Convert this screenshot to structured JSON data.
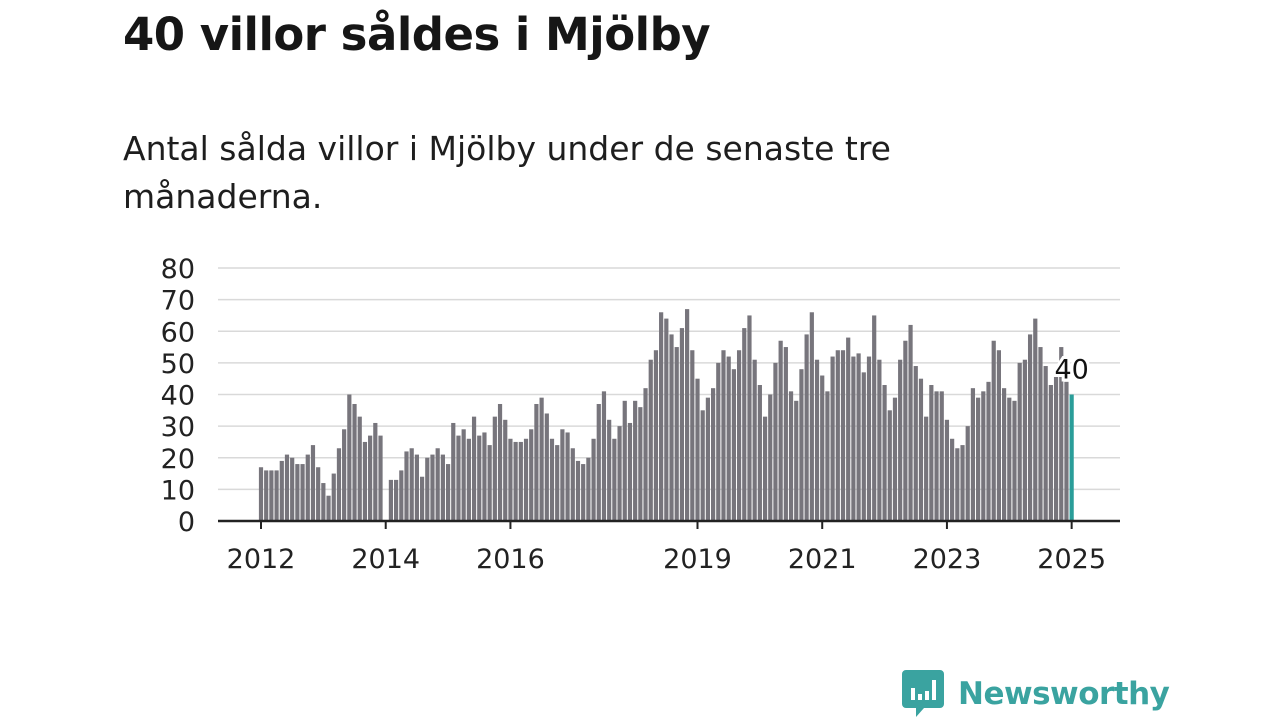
{
  "header": {
    "title": "40 villor såldes i Mjölby",
    "subtitle": "Antal sålda villor i Mjölby under de senaste tre månaderna."
  },
  "brand": {
    "name": "Newsworthy",
    "color": "#3aa3a0",
    "icon": "newsworthy-logo-icon"
  },
  "colors": {
    "bar": "#77757c",
    "highlight": "#2a9d99",
    "grid": "#d9d9d9",
    "axis": "#222222"
  },
  "chart_data": {
    "type": "bar",
    "title": "",
    "xlabel": "",
    "ylabel": "",
    "ylim": [
      0,
      80
    ],
    "yticks": [
      0,
      10,
      20,
      30,
      40,
      50,
      60,
      70,
      80
    ],
    "xticks": [
      "2012",
      "2014",
      "2016",
      "2019",
      "2021",
      "2023",
      "2025"
    ],
    "x_start": "2012-01",
    "x_end": "2025-01",
    "grid": true,
    "highlight_label": "40",
    "series": [
      {
        "values": [
          17,
          16,
          16,
          16,
          19,
          21,
          20,
          18,
          18,
          21,
          24,
          17,
          12,
          8,
          15,
          23,
          29,
          40,
          37,
          33,
          25,
          27,
          31,
          27,
          0,
          13,
          13,
          16,
          22,
          23,
          21,
          14,
          20,
          21,
          23,
          21,
          18,
          31,
          27,
          29,
          26,
          33,
          27,
          28,
          24,
          33,
          37,
          32,
          26,
          25,
          25,
          26,
          29,
          37,
          39,
          34,
          26,
          24,
          29,
          28,
          23,
          19,
          18,
          20,
          26,
          37,
          41,
          32,
          26,
          30,
          38,
          31,
          38,
          36,
          42,
          51,
          54,
          66,
          64,
          59,
          55,
          61,
          67,
          54,
          45,
          35,
          39,
          42,
          50,
          54,
          52,
          48,
          54,
          61,
          65,
          51,
          43,
          33,
          40,
          50,
          57,
          55,
          41,
          38,
          48,
          59,
          66,
          51,
          46,
          41,
          52,
          54,
          54,
          58,
          52,
          53,
          47,
          52,
          65,
          51,
          43,
          35,
          39,
          51,
          57,
          62,
          49,
          45,
          33,
          43,
          41,
          41,
          32,
          26,
          23,
          24,
          30,
          42,
          39,
          41,
          44,
          57,
          54,
          42,
          39,
          38,
          50,
          51,
          59,
          64,
          55,
          49,
          43,
          46,
          55,
          44,
          40
        ]
      }
    ]
  }
}
